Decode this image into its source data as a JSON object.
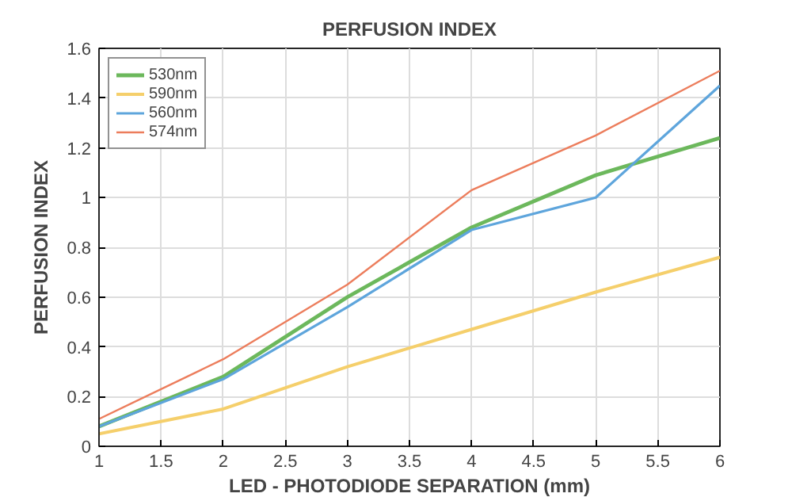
{
  "chart_data": {
    "type": "line",
    "title": "PERFUSION INDEX",
    "xlabel": "LED - PHOTODIODE SEPARATION (mm)",
    "ylabel": "PERFUSION INDEX",
    "x": [
      1,
      2,
      3,
      4,
      5,
      6
    ],
    "series": [
      {
        "name": "530nm",
        "color": "#6cb85c",
        "values": [
          0.08,
          0.28,
          0.6,
          0.88,
          1.09,
          1.24
        ]
      },
      {
        "name": "590nm",
        "color": "#f5cf6b",
        "values": [
          0.05,
          0.15,
          0.32,
          0.47,
          0.62,
          0.76
        ]
      },
      {
        "name": "560nm",
        "color": "#5ea5dc",
        "values": [
          0.08,
          0.27,
          0.56,
          0.87,
          1.0,
          1.45
        ]
      },
      {
        "name": "574nm",
        "color": "#ec7d5c",
        "values": [
          0.11,
          0.35,
          0.65,
          1.03,
          1.25,
          1.51
        ]
      }
    ],
    "xlim": [
      1,
      6
    ],
    "xticks": [
      1,
      1.5,
      2,
      2.5,
      3,
      3.5,
      4,
      4.5,
      5,
      5.5,
      6
    ],
    "ylim": [
      0,
      1.6
    ],
    "yticks": [
      0,
      0.2,
      0.4,
      0.6,
      0.8,
      1,
      1.2,
      1.4,
      1.6
    ],
    "grid": true,
    "legend": "top left",
    "marker": "none",
    "line_style": "solid"
  }
}
